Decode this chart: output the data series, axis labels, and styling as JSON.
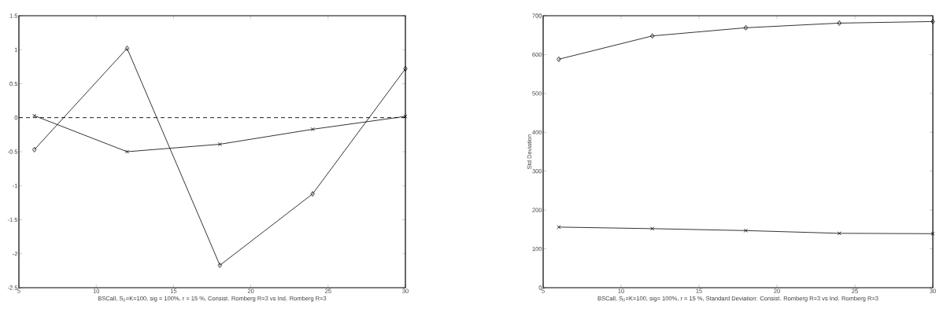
{
  "chart_data": [
    {
      "type": "line",
      "xlabel": "BSCall, S$_{0}$=K=100, sig = 100%, r = 15 %, Consist. Romberg R=3 vs Ind. Romberg R=3",
      "x": [
        6,
        12,
        18,
        24,
        30
      ],
      "series": [
        {
          "color": "#000000",
          "marker": "diamond",
          "values": [
            -0.47,
            1.02,
            -2.17,
            -1.12,
            0.72
          ]
        },
        {
          "color": "#000000",
          "marker": "cross",
          "values": [
            0.03,
            -0.5,
            -0.39,
            -0.17,
            0.02
          ]
        }
      ],
      "xlim": [
        5,
        30
      ],
      "xticks": [
        5,
        10,
        15,
        20,
        25,
        30
      ],
      "ylim": [
        -2.5,
        1.5
      ],
      "yticks": [
        -2.5,
        -2,
        -1.5,
        -1,
        -0.5,
        0,
        0.5,
        1,
        1.5
      ],
      "ref_lines": [
        {
          "axis": "y",
          "value": 0,
          "color": "#000000",
          "line_style": "dashed"
        }
      ],
      "grid": false
    },
    {
      "type": "line",
      "xlabel": "BSCall, S$_{0}$=K=100, sig= 100%, r = 15 %, Standard Deviation: Consist. Romberg R=3 vs Ind. Romberg R=3",
      "ylabel": "Std Deviation",
      "x": [
        6,
        12,
        18,
        24,
        30
      ],
      "series": [
        {
          "color": "#000000",
          "marker": "diamond",
          "values": [
            588,
            648,
            669,
            681,
            685
          ]
        },
        {
          "color": "#000000",
          "marker": "cross",
          "values": [
            156,
            152,
            147,
            140,
            139
          ]
        }
      ],
      "xlim": [
        5,
        30
      ],
      "xticks": [
        5,
        10,
        15,
        20,
        25,
        30
      ],
      "ylim": [
        0,
        700
      ],
      "yticks": [
        0,
        100,
        200,
        300,
        400,
        500,
        600,
        700
      ],
      "grid": false
    }
  ]
}
